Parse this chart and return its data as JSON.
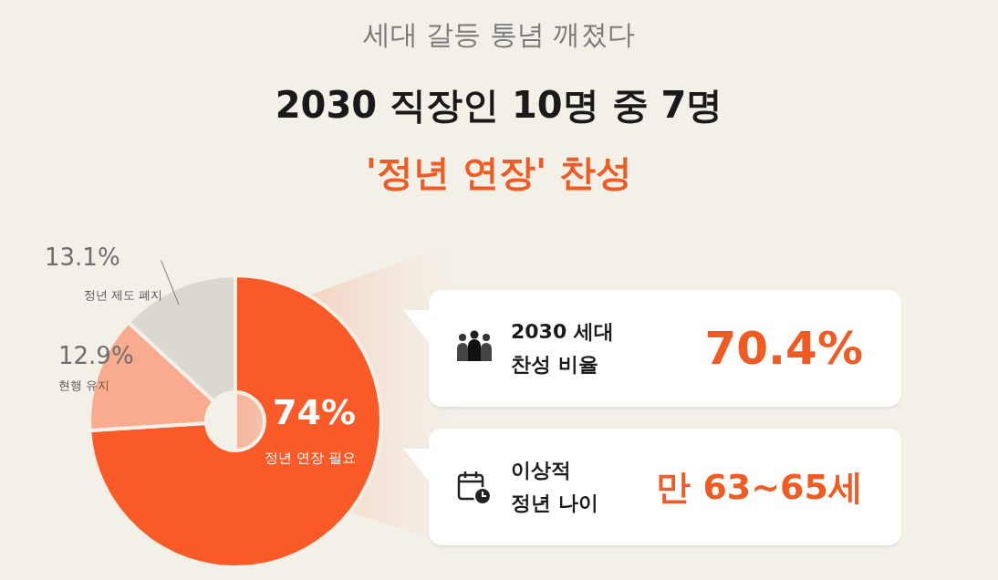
{
  "chart_data": [
    {
      "type": "donut",
      "subtitle": "세대 갈등 통념 깨졌다",
      "title": "2030 직장인 10명 중 7명\n'정년 연장' 찬성",
      "categories": [
        "정년 연장 필요",
        "현행 유지",
        "정년 제도 폐지"
      ],
      "values": [
        74,
        12.9,
        13.1
      ],
      "value_labels": [
        "74%",
        "12.9%",
        "13.1%"
      ],
      "colors": [
        "#fa5a28",
        "#f8ab8f",
        "#dad8d1"
      ],
      "legend": false
    },
    {
      "type": "other",
      "annotations": [
        "2030 세대\n찬성 비율",
        "70.4%",
        "이상적\n정년 나이",
        "만 63~65세"
      ]
    }
  ]
}
